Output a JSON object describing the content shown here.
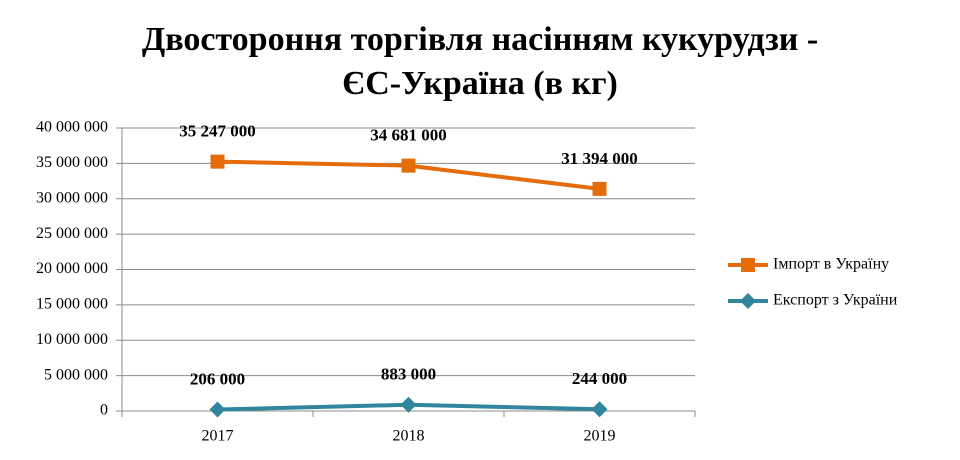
{
  "chart_data": {
    "type": "line",
    "title": [
      "Двостороння торгівля насінням кукурудзи -",
      "ЄС-Україна  (в кг)"
    ],
    "categories": [
      "2017",
      "2018",
      "2019"
    ],
    "series": [
      {
        "name": "Імпорт в Україну",
        "color": "#e46c0a",
        "marker": "square",
        "values": [
          35247000,
          34681000,
          31394000
        ],
        "value_labels": [
          "35 247 000",
          "34 681 000",
          "31 394 000"
        ]
      },
      {
        "name": "Експорт з України",
        "color": "#31859c",
        "marker": "diamond",
        "values": [
          206000,
          883000,
          244000
        ],
        "value_labels": [
          "206 000",
          "883 000",
          "244 000"
        ]
      }
    ],
    "ylim": [
      0,
      40000000
    ],
    "yticks": [
      {
        "value": 0,
        "label": "0"
      },
      {
        "value": 5000000,
        "label": "5 000 000"
      },
      {
        "value": 10000000,
        "label": "10 000 000"
      },
      {
        "value": 15000000,
        "label": "15 000 000"
      },
      {
        "value": 20000000,
        "label": "20 000 000"
      },
      {
        "value": 25000000,
        "label": "25 000 000"
      },
      {
        "value": 30000000,
        "label": "30 000 000"
      },
      {
        "value": 35000000,
        "label": "35 000 000"
      },
      {
        "value": 40000000,
        "label": "40 000 000"
      }
    ],
    "grid": true,
    "legend": "right"
  }
}
